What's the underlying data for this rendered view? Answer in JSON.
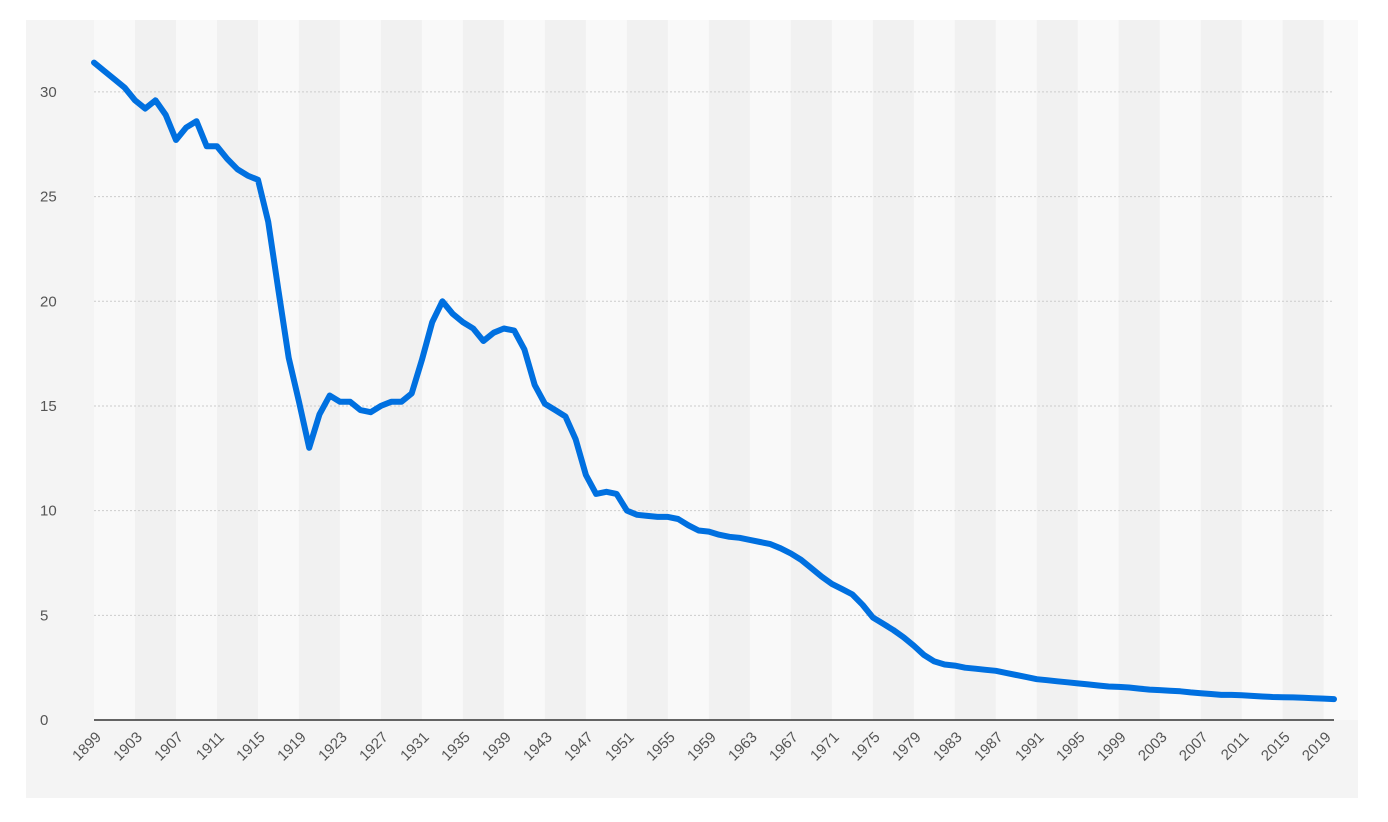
{
  "chart_data": {
    "type": "line",
    "title": "",
    "xlabel": "",
    "ylabel": "",
    "ylim": [
      0,
      32
    ],
    "xlim": [
      1899,
      2020
    ],
    "grid": true,
    "y_ticks": [
      0,
      5,
      10,
      15,
      20,
      25,
      30
    ],
    "x_ticks": [
      "1899",
      "1903",
      "1907",
      "1911",
      "1915",
      "1919",
      "1923",
      "1927",
      "1931",
      "1935",
      "1939",
      "1943",
      "1947",
      "1951",
      "1955",
      "1959",
      "1963",
      "1967",
      "1971",
      "1975",
      "1979",
      "1983",
      "1987",
      "1991",
      "1995",
      "1999",
      "2003",
      "2007",
      "2011",
      "2015",
      "2019"
    ],
    "colors": {
      "line": "#0070e0",
      "axis": "#333333",
      "grid": "#cccccc",
      "band_light": "#f9f9f9",
      "band_dark": "#f1f1f1",
      "tick_text": "#555555"
    },
    "series": [
      {
        "x": [
          1899,
          1900,
          1901,
          1902,
          1903,
          1904,
          1905,
          1906,
          1907,
          1908,
          1909,
          1910,
          1911,
          1912,
          1913,
          1914,
          1915,
          1916,
          1917,
          1918,
          1919,
          1920,
          1921,
          1922,
          1923,
          1924,
          1925,
          1926,
          1927,
          1928,
          1929,
          1930,
          1931,
          1932,
          1933,
          1934,
          1935,
          1936,
          1937,
          1938,
          1939,
          1940,
          1941,
          1942,
          1943,
          1944,
          1945,
          1946,
          1947,
          1948,
          1949,
          1950,
          1951,
          1952,
          1953,
          1954,
          1955,
          1956,
          1957,
          1958,
          1959,
          1960,
          1961,
          1962,
          1963,
          1964,
          1965,
          1966,
          1967,
          1968,
          1969,
          1970,
          1971,
          1972,
          1973,
          1974,
          1975,
          1976,
          1977,
          1978,
          1979,
          1980,
          1981,
          1982,
          1983,
          1984,
          1985,
          1986,
          1987,
          1988,
          1989,
          1990,
          1991,
          1992,
          1993,
          1994,
          1995,
          1996,
          1997,
          1998,
          1999,
          2000,
          2001,
          2002,
          2003,
          2004,
          2005,
          2006,
          2007,
          2008,
          2009,
          2010,
          2011,
          2012,
          2013,
          2014,
          2015,
          2016,
          2017,
          2018,
          2019,
          2020
        ],
        "values": [
          31.4,
          31.0,
          30.6,
          30.2,
          29.6,
          29.2,
          29.6,
          28.9,
          27.7,
          28.3,
          28.6,
          27.4,
          27.4,
          26.8,
          26.3,
          26.0,
          25.8,
          23.8,
          20.5,
          17.3,
          15.2,
          13.0,
          14.6,
          15.5,
          15.2,
          15.2,
          14.8,
          14.7,
          15.0,
          15.2,
          15.2,
          15.6,
          17.2,
          19.0,
          20.0,
          19.4,
          19.0,
          18.7,
          18.1,
          18.5,
          18.7,
          18.6,
          17.7,
          16.0,
          15.1,
          14.8,
          14.5,
          13.4,
          11.7,
          10.8,
          10.9,
          10.8,
          10.0,
          9.8,
          9.75,
          9.7,
          9.7,
          9.6,
          9.3,
          9.05,
          9.0,
          8.85,
          8.75,
          8.7,
          8.6,
          8.5,
          8.4,
          8.2,
          7.95,
          7.65,
          7.25,
          6.85,
          6.5,
          6.25,
          6.0,
          5.5,
          4.9,
          4.6,
          4.3,
          3.95,
          3.55,
          3.1,
          2.8,
          2.65,
          2.6,
          2.5,
          2.45,
          2.4,
          2.35,
          2.25,
          2.15,
          2.05,
          1.95,
          1.9,
          1.85,
          1.8,
          1.75,
          1.7,
          1.65,
          1.6,
          1.58,
          1.55,
          1.5,
          1.45,
          1.43,
          1.4,
          1.37,
          1.32,
          1.28,
          1.24,
          1.2,
          1.2,
          1.18,
          1.15,
          1.12,
          1.1,
          1.09,
          1.08,
          1.06,
          1.04,
          1.02,
          1.0
        ]
      }
    ]
  }
}
